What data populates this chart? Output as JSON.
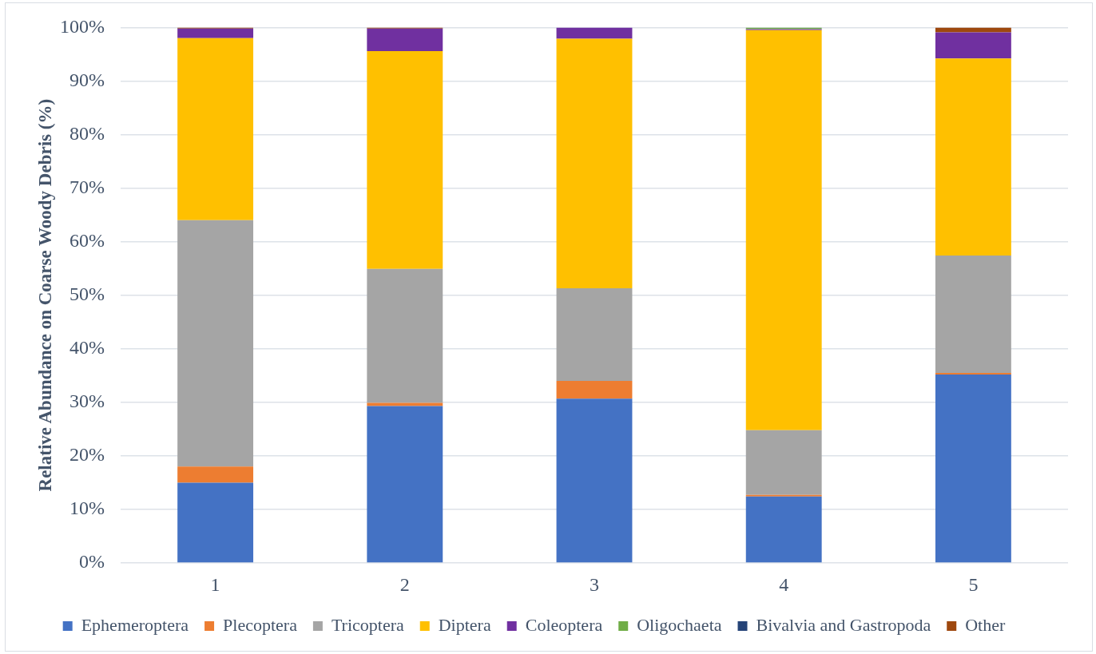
{
  "chart_data": {
    "type": "bar",
    "ylabel": "Relative Abundance on Coarse Woody Debris (%)",
    "categories": [
      "1",
      "2",
      "3",
      "4",
      "5"
    ],
    "stacked": true,
    "grid": "y",
    "legend": "bottom",
    "ylim": [
      0,
      100
    ],
    "yticks": [
      {
        "value": 0,
        "label": "0%"
      },
      {
        "value": 10,
        "label": "10%"
      },
      {
        "value": 20,
        "label": "20%"
      },
      {
        "value": 30,
        "label": "30%"
      },
      {
        "value": 40,
        "label": "40%"
      },
      {
        "value": 50,
        "label": "50%"
      },
      {
        "value": 60,
        "label": "60%"
      },
      {
        "value": 70,
        "label": "70%"
      },
      {
        "value": 80,
        "label": "80%"
      },
      {
        "value": 90,
        "label": "90%"
      },
      {
        "value": 100,
        "label": "100%"
      }
    ],
    "series": [
      {
        "name": "Ephemeroptera",
        "color": "#4472c4",
        "values": [
          15,
          29.3,
          30.7,
          12.4,
          35.2
        ]
      },
      {
        "name": "Plecoptera",
        "color": "#ed7d31",
        "values": [
          3,
          0.6,
          3.3,
          0.3,
          0.3
        ]
      },
      {
        "name": "Tricoptera",
        "color": "#a5a5a5",
        "values": [
          46,
          25,
          17.3,
          12.1,
          21.9
        ]
      },
      {
        "name": "Diptera",
        "color": "#ffc000",
        "values": [
          34,
          40.7,
          46.6,
          74.7,
          36.8
        ]
      },
      {
        "name": "Coleoptera",
        "color": "#7030a0",
        "values": [
          1.8,
          4.2,
          2.1,
          0.2,
          4.9
        ]
      },
      {
        "name": "Oligochaeta",
        "color": "#70ad47",
        "values": [
          0,
          0,
          0,
          0.3,
          0
        ]
      },
      {
        "name": "Bivalvia and Gastropoda",
        "color": "#264478",
        "values": [
          0,
          0,
          0,
          0,
          0
        ]
      },
      {
        "name": "Other",
        "color": "#9e480e",
        "values": [
          0.2,
          0.2,
          0,
          0,
          0.9
        ]
      }
    ]
  }
}
